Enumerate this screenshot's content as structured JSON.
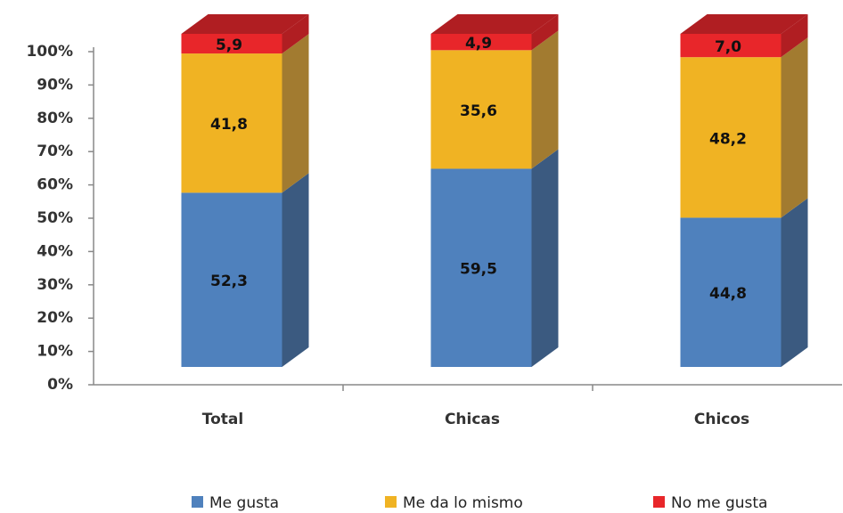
{
  "chart_data": {
    "type": "bar3d_stacked",
    "categories": [
      "Total",
      "Chicas",
      "Chicos"
    ],
    "series": [
      {
        "name": "Me gusta",
        "color": "#4f81bd",
        "side": "#3b5a80",
        "values": [
          52.3,
          59.5,
          44.8
        ],
        "value_labels": [
          "52,3",
          "59,5",
          "44,8"
        ]
      },
      {
        "name": "Me da lo mismo",
        "color": "#f0b323",
        "side": "#a27b30",
        "values": [
          41.8,
          35.6,
          48.2
        ],
        "value_labels": [
          "41,8",
          "35,6",
          "48,2"
        ]
      },
      {
        "name": "No me gusta",
        "color": "#e8262a",
        "side": "#b01e22",
        "values": [
          5.9,
          4.9,
          7.0
        ],
        "value_labels": [
          "5,9",
          "4,9",
          "7,0"
        ]
      }
    ],
    "ylim": [
      0,
      100
    ],
    "yticks": [
      {
        "value": 0,
        "label": "0%"
      },
      {
        "value": 10,
        "label": "10%"
      },
      {
        "value": 20,
        "label": "20%"
      },
      {
        "value": 30,
        "label": "30%"
      },
      {
        "value": 40,
        "label": "40%"
      },
      {
        "value": 50,
        "label": "50%"
      },
      {
        "value": 60,
        "label": "60%"
      },
      {
        "value": 70,
        "label": "70%"
      },
      {
        "value": 80,
        "label": "80%"
      },
      {
        "value": 90,
        "label": "90%"
      },
      {
        "value": 100,
        "label": "100%"
      }
    ]
  }
}
